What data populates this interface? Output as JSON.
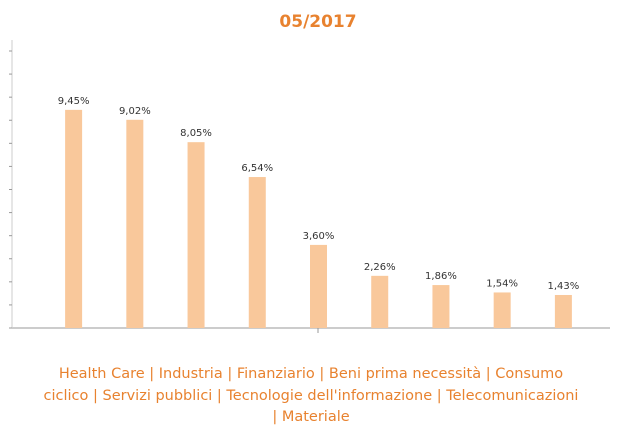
{
  "chart_data": {
    "type": "bar",
    "title": "05/2017",
    "categories": [
      null,
      null,
      null,
      null,
      null,
      null,
      null,
      null,
      null
    ],
    "values": [
      9.45,
      9.02,
      8.05,
      6.54,
      3.6,
      2.26,
      1.86,
      1.54,
      1.43
    ],
    "value_labels": [
      "9,45%",
      "9,02%",
      "8,05%",
      "6,54%",
      "3,60%",
      "2,26%",
      "1,86%",
      "1,54%",
      "1,43%"
    ],
    "color": "#f9c89b",
    "ylim": [
      0,
      12
    ],
    "yticks": [
      0,
      1,
      2,
      3,
      4,
      5,
      6,
      7,
      8,
      9,
      10,
      11,
      12
    ],
    "grid": false,
    "caption": "Health Care | Industria | Finanziario | Beni prima necessità | Consumo ciclico | Servizi pubblici | Tecnologie dell'informazione | Telecomunicazioni | Materiale"
  }
}
